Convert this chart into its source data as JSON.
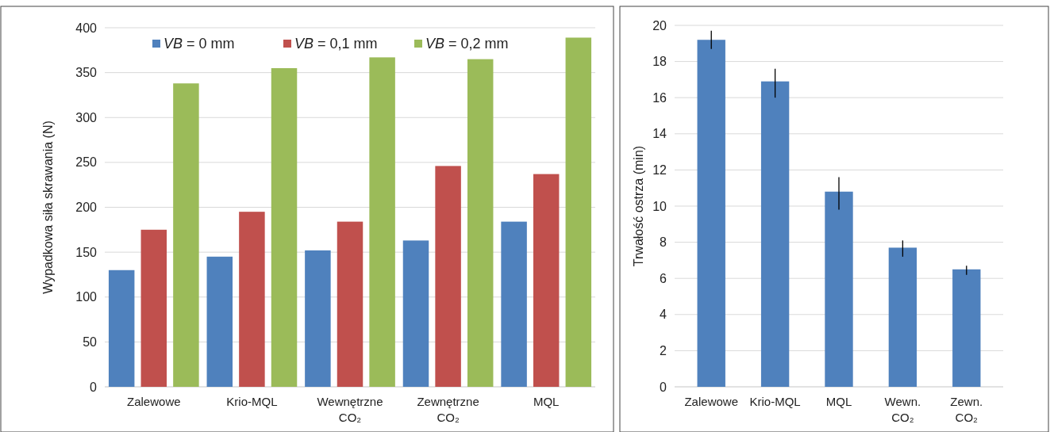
{
  "chart_data": [
    {
      "type": "bar",
      "ylabel": "Wypadkowa siła skrawania (N)",
      "categories": [
        "Zalewowe",
        "Krio-MQL",
        "Wewnętrzne CO₂",
        "Zewnętrzne CO₂",
        "MQL"
      ],
      "series": [
        {
          "name": "VB = 0 mm",
          "color": "#4f81bd",
          "values": [
            130,
            145,
            152,
            163,
            184
          ]
        },
        {
          "name": "VB = 0,1 mm",
          "color": "#c0504d",
          "values": [
            175,
            195,
            184,
            246,
            237
          ]
        },
        {
          "name": "VB = 0,2 mm",
          "color": "#9bbb59",
          "values": [
            338,
            355,
            367,
            365,
            389
          ]
        }
      ],
      "ylim": [
        0,
        400
      ],
      "yticks": [
        0,
        50,
        100,
        150,
        200,
        250,
        300,
        350,
        400
      ],
      "grid": "y",
      "legend": "top"
    },
    {
      "type": "bar",
      "ylabel": "Trwałość ostrza (min)",
      "categories": [
        "Zalewowe",
        "Krio-MQL",
        "MQL",
        "Wewn. CO₂",
        "Zewn. CO₂"
      ],
      "values": [
        19.2,
        16.9,
        10.8,
        7.7,
        6.5
      ],
      "color": "#4f81bd",
      "errors": [
        [
          18.7,
          19.7
        ],
        [
          16.0,
          17.6
        ],
        [
          9.8,
          11.6
        ],
        [
          7.2,
          8.1
        ],
        [
          6.2,
          6.7
        ]
      ],
      "ylim": [
        0,
        20
      ],
      "yticks": [
        0,
        2,
        4,
        6,
        8,
        10,
        12,
        14,
        16,
        18,
        20
      ],
      "grid": "y"
    }
  ]
}
